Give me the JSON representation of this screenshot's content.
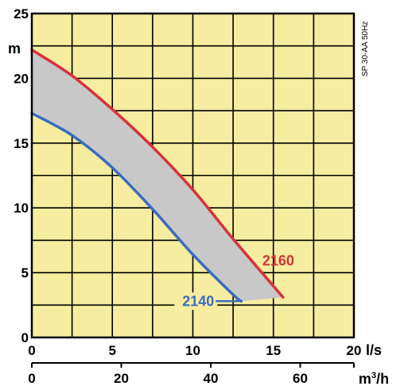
{
  "chart_data": {
    "type": "line",
    "model_label": "SP 30-AA 50Hz",
    "y_unit": "m",
    "x_unit_top": "l/s",
    "x_unit_bottom_base": "m",
    "x_unit_bottom_sup": "3",
    "x_unit_bottom_tail": "/h",
    "ylim": [
      0,
      25
    ],
    "xlim": [
      0,
      20
    ],
    "y_ticks": [
      "0",
      "5",
      "10",
      "15",
      "20",
      "25"
    ],
    "x_ticks_top": [
      "0",
      "5",
      "10",
      "15",
      "20"
    ],
    "x_ticks_bottom": [
      "0",
      "20",
      "40",
      "60"
    ],
    "grid": true,
    "background_color": "#f7eda0",
    "band_color": "#c8c8c8",
    "series": [
      {
        "name": "2160",
        "color": "#d9303a",
        "x": [
          0,
          2.5,
          5,
          7.5,
          10,
          12.5,
          15.6
        ],
        "y": [
          22.2,
          20.2,
          17.6,
          14.7,
          11.4,
          7.6,
          3.1
        ]
      },
      {
        "name": "2140",
        "color": "#3a6cc0",
        "x": [
          0,
          2.5,
          5,
          7.5,
          10,
          12.5,
          13.0
        ],
        "y": [
          17.3,
          15.6,
          13.1,
          9.9,
          6.4,
          3.3,
          2.8
        ]
      }
    ]
  }
}
